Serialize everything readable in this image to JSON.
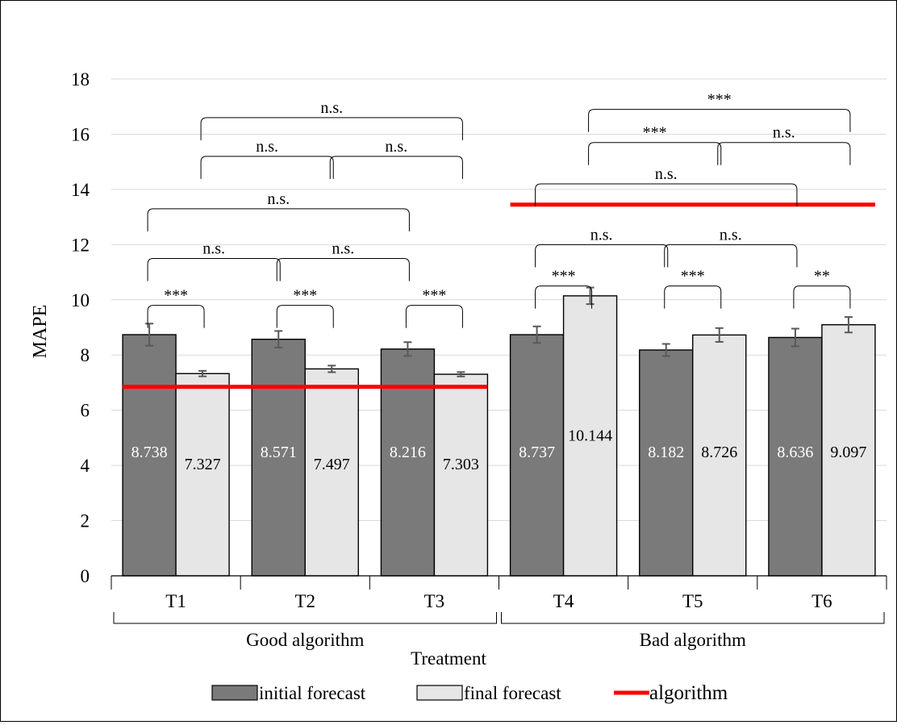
{
  "chart_data": {
    "type": "bar",
    "ylabel": "MAPE",
    "xlabel": "Treatment",
    "ylim": [
      0,
      18
    ],
    "yticks": [
      0,
      2,
      4,
      6,
      8,
      10,
      12,
      14,
      16,
      18
    ],
    "grid": true,
    "categories": [
      "T1",
      "T2",
      "T3",
      "T4",
      "T5",
      "T6"
    ],
    "groups": [
      {
        "label": "Good algorithm",
        "categories": [
          "T1",
          "T2",
          "T3"
        ]
      },
      {
        "label": "Bad algorithm",
        "categories": [
          "T4",
          "T5",
          "T6"
        ]
      }
    ],
    "series": [
      {
        "name": "initial forecast",
        "color": "#7a7a7a",
        "values": [
          8.738,
          8.571,
          8.216,
          8.737,
          8.182,
          8.636
        ],
        "labels": [
          "8.738",
          "8.571",
          "8.216",
          "8.737",
          "8.182",
          "8.636"
        ],
        "error": [
          0.4,
          0.3,
          0.25,
          0.3,
          0.22,
          0.32
        ]
      },
      {
        "name": "final forecast",
        "color": "#e6e6e6",
        "values": [
          7.327,
          7.497,
          7.303,
          10.144,
          8.726,
          9.097
        ],
        "labels": [
          "7.327",
          "7.497",
          "7.303",
          "10.144",
          "8.726",
          "9.097"
        ],
        "error": [
          0.1,
          0.12,
          0.08,
          0.3,
          0.25,
          0.28
        ]
      }
    ],
    "algorithm_lines": [
      {
        "from": "T1",
        "to": "T3",
        "y": 6.85
      },
      {
        "from": "T4",
        "to": "T6",
        "y": 13.45
      }
    ],
    "significance": [
      {
        "a": "T1:initial",
        "b": "T1:final",
        "y": 9.8,
        "text": "***"
      },
      {
        "a": "T2:initial",
        "b": "T2:final",
        "y": 9.8,
        "text": "***"
      },
      {
        "a": "T3:initial",
        "b": "T3:final",
        "y": 9.8,
        "text": "***"
      },
      {
        "a": "T1:initial",
        "b": "T2:initial",
        "y": 11.5,
        "text": "n.s."
      },
      {
        "a": "T2:initial",
        "b": "T3:initial",
        "y": 11.5,
        "text": "n.s."
      },
      {
        "a": "T1:initial",
        "b": "T3:initial",
        "y": 13.3,
        "text": "n.s."
      },
      {
        "a": "T1:final",
        "b": "T2:final",
        "y": 15.2,
        "text": "n.s."
      },
      {
        "a": "T2:final",
        "b": "T3:final",
        "y": 15.2,
        "text": "n.s."
      },
      {
        "a": "T1:final",
        "b": "T3:final",
        "y": 16.6,
        "text": "n.s."
      },
      {
        "a": "T4:initial",
        "b": "T4:final",
        "y": 10.5,
        "text": "***"
      },
      {
        "a": "T5:initial",
        "b": "T5:final",
        "y": 10.5,
        "text": "***"
      },
      {
        "a": "T6:initial",
        "b": "T6:final",
        "y": 10.5,
        "text": "**"
      },
      {
        "a": "T4:initial",
        "b": "T5:initial",
        "y": 12.0,
        "text": "n.s."
      },
      {
        "a": "T5:initial",
        "b": "T6:initial",
        "y": 12.0,
        "text": "n.s."
      },
      {
        "a": "T4:initial",
        "b": "T6:initial",
        "y": 14.2,
        "text": "n.s."
      },
      {
        "a": "T4:final",
        "b": "T5:final",
        "y": 15.7,
        "text": "***"
      },
      {
        "a": "T5:final",
        "b": "T6:final",
        "y": 15.7,
        "text": "n.s."
      },
      {
        "a": "T4:final",
        "b": "T6:final",
        "y": 16.9,
        "text": "***"
      }
    ],
    "legend": {
      "position": "bottom",
      "items": [
        {
          "label": "initial forecast",
          "kind": "box",
          "color": "#7a7a7a"
        },
        {
          "label": "final forecast",
          "kind": "box",
          "color": "#e6e6e6"
        },
        {
          "label": "algorithm",
          "kind": "line",
          "color": "#ff0000"
        }
      ]
    }
  }
}
